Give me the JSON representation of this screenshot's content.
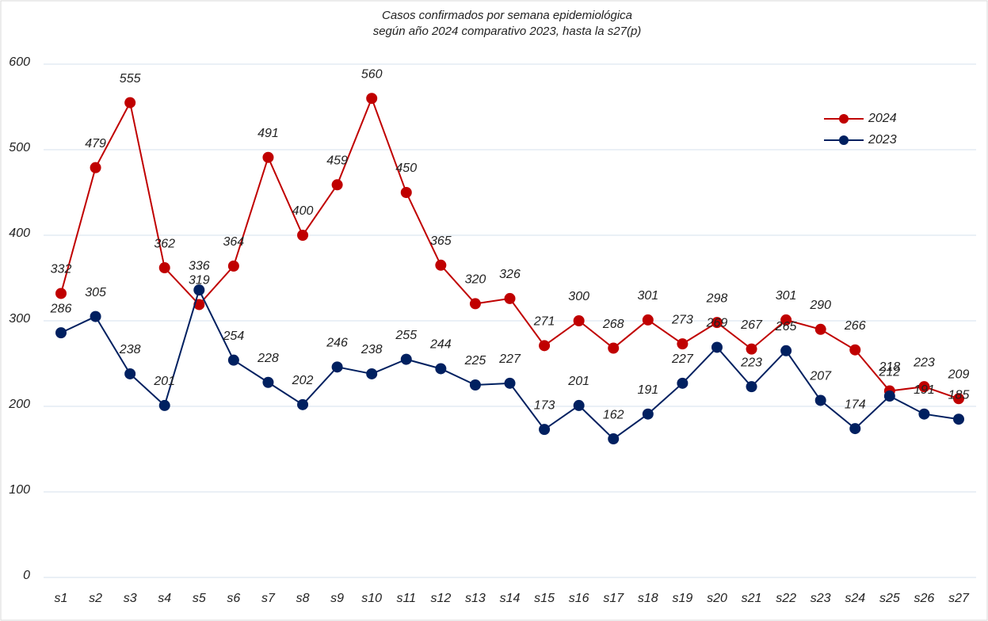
{
  "chart_data": {
    "type": "line",
    "title": "Casos confirmados por semana epidemiológica",
    "subtitle": "según año 2024 comparativo 2023, hasta la s27(p)",
    "categories": [
      "s1",
      "s2",
      "s3",
      "s4",
      "s5",
      "s6",
      "s7",
      "s8",
      "s9",
      "s10",
      "s11",
      "s12",
      "s13",
      "s14",
      "s15",
      "s16",
      "s17",
      "s18",
      "s19",
      "s20",
      "s21",
      "s22",
      "s23",
      "s24",
      "s25",
      "s26",
      "s27"
    ],
    "series": [
      {
        "name": "2024",
        "color": "#c00000",
        "values": [
          332,
          479,
          555,
          362,
          319,
          364,
          491,
          400,
          459,
          560,
          450,
          365,
          320,
          326,
          271,
          300,
          268,
          301,
          273,
          298,
          267,
          301,
          290,
          266,
          218,
          223,
          209
        ]
      },
      {
        "name": "2023",
        "color": "#002060",
        "values": [
          286,
          305,
          238,
          201,
          336,
          254,
          228,
          202,
          246,
          238,
          255,
          244,
          225,
          227,
          173,
          201,
          162,
          191,
          227,
          269,
          223,
          265,
          207,
          174,
          212,
          191,
          185
        ]
      }
    ],
    "ylim": [
      0,
      600
    ],
    "yticks": [
      0,
      100,
      200,
      300,
      400,
      500,
      600
    ],
    "grid": true,
    "legend": "top-right"
  }
}
